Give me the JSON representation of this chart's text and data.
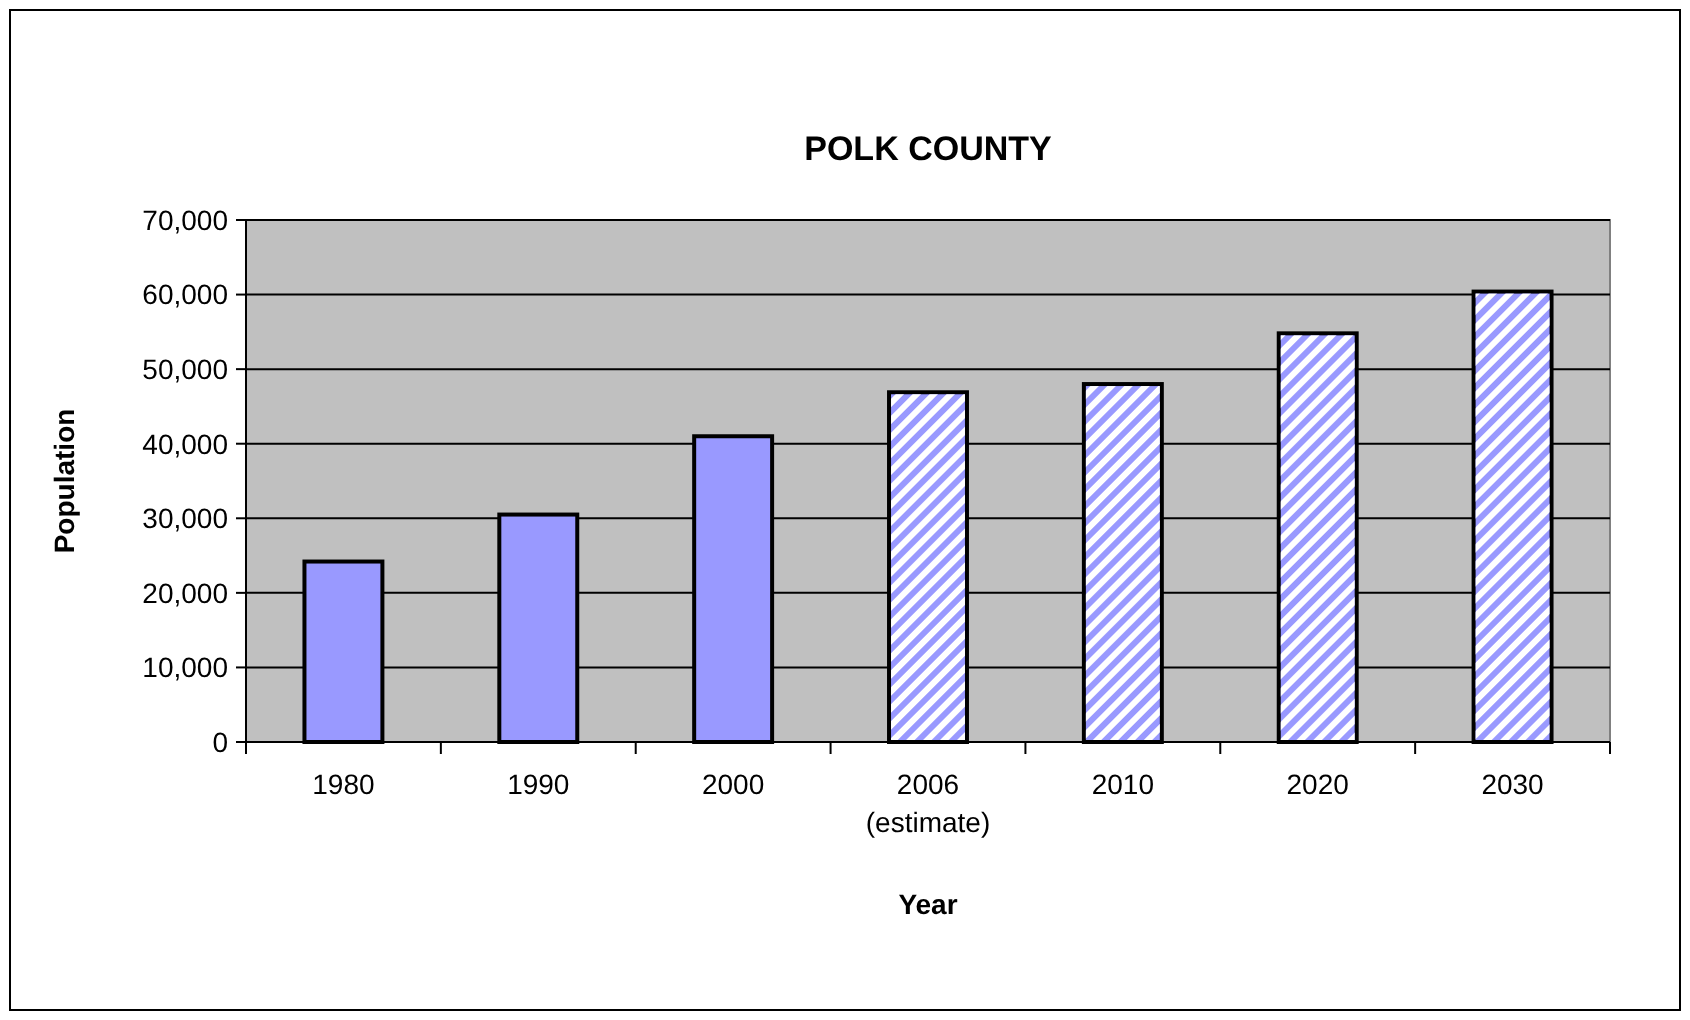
{
  "chart_data": {
    "type": "bar",
    "title": "POLK COUNTY",
    "xlabel": "Year",
    "ylabel": "Population",
    "categories": [
      "1980",
      "1990",
      "2000",
      "2006\n(estimate)",
      "2010",
      "2020",
      "2030"
    ],
    "series": [
      {
        "color": "#9999ff",
        "values": [
          24200,
          30500,
          41000,
          null,
          null,
          null,
          null
        ]
      },
      {
        "color": "#9999ff",
        "values": [
          null,
          null,
          null,
          46900,
          48000,
          54800,
          60400
        ]
      }
    ],
    "ylim": [
      0,
      70000
    ],
    "yticks": [
      {
        "value": 0,
        "label": "0"
      },
      {
        "value": 10000,
        "label": "10,000"
      },
      {
        "value": 20000,
        "label": "20,000"
      },
      {
        "value": 30000,
        "label": "30,000"
      },
      {
        "value": 40000,
        "label": "40,000"
      },
      {
        "value": 50000,
        "label": "50,000"
      },
      {
        "value": 60000,
        "label": "60,000"
      },
      {
        "value": 70000,
        "label": "70,000"
      }
    ],
    "grid": "y"
  }
}
